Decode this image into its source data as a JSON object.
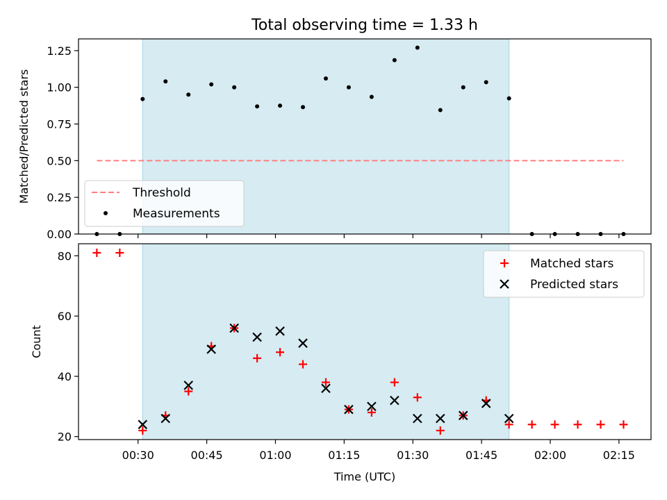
{
  "figure": {
    "title": "Total observing time = 1.33 h"
  },
  "colors": {
    "shade": "#add8e6",
    "threshold": "#ff7f7f",
    "measurement": "#000000",
    "matched": "#ff0000",
    "predicted": "#000000"
  },
  "chart_data": [
    {
      "type": "scatter",
      "panel": "top",
      "title": "Total observing time = 1.33 h",
      "xlabel": "",
      "ylabel": "Matched/Predicted stars",
      "x_unit": "minutes of UTC time",
      "xlim": [
        "00:17",
        "02:22"
      ],
      "ylim": [
        0,
        1.33
      ],
      "yticks": [
        "0.00",
        "0.25",
        "0.50",
        "0.75",
        "1.00",
        "1.25"
      ],
      "xticks": [
        "00:30",
        "00:45",
        "01:00",
        "01:15",
        "01:30",
        "01:45",
        "02:00",
        "02:15"
      ],
      "shaded_interval": [
        "00:31",
        "01:51"
      ],
      "legend_position": "lower-left",
      "series": [
        {
          "name": "Threshold",
          "style": "dashed-line",
          "x": [
            "00:21",
            "02:16"
          ],
          "y": [
            0.5,
            0.5
          ]
        },
        {
          "name": "Measurements",
          "style": "dot",
          "x": [
            "00:21",
            "00:26",
            "00:31",
            "00:36",
            "00:41",
            "00:46",
            "00:51",
            "00:56",
            "01:01",
            "01:06",
            "01:11",
            "01:16",
            "01:21",
            "01:26",
            "01:31",
            "01:36",
            "01:41",
            "01:46",
            "01:51",
            "01:56",
            "02:01",
            "02:06",
            "02:11",
            "02:16"
          ],
          "y": [
            0.0,
            0.0,
            0.92,
            1.04,
            0.95,
            1.02,
            1.0,
            0.87,
            0.875,
            0.865,
            1.06,
            1.0,
            0.935,
            1.185,
            1.27,
            0.845,
            1.0,
            1.035,
            0.925,
            0.0,
            0.0,
            0.0,
            0.0,
            0.0
          ]
        }
      ]
    },
    {
      "type": "scatter",
      "panel": "bottom",
      "title": "",
      "xlabel": "Time (UTC)",
      "ylabel": "Count",
      "x_unit": "minutes of UTC time",
      "xlim": [
        "00:17",
        "02:22"
      ],
      "ylim": [
        19,
        84
      ],
      "yticks": [
        "20",
        "40",
        "60",
        "80"
      ],
      "xticks": [
        "00:30",
        "00:45",
        "01:00",
        "01:15",
        "01:30",
        "01:45",
        "02:00",
        "02:15"
      ],
      "shaded_interval": [
        "00:31",
        "01:51"
      ],
      "legend_position": "upper-right",
      "series": [
        {
          "name": "Matched stars",
          "style": "plus",
          "x": [
            "00:21",
            "00:26",
            "00:31",
            "00:36",
            "00:41",
            "00:46",
            "00:51",
            "00:56",
            "01:01",
            "01:06",
            "01:11",
            "01:16",
            "01:21",
            "01:26",
            "01:31",
            "01:36",
            "01:41",
            "01:46",
            "01:51",
            "01:56",
            "02:01",
            "02:06",
            "02:11",
            "02:16"
          ],
          "y": [
            81,
            81,
            22,
            27,
            35,
            50,
            56,
            46,
            48,
            44,
            38,
            29,
            28,
            38,
            33,
            22,
            27,
            32,
            24,
            24,
            24,
            24,
            24,
            24
          ]
        },
        {
          "name": "Predicted stars",
          "style": "x",
          "x": [
            "00:31",
            "00:36",
            "00:41",
            "00:46",
            "00:51",
            "00:56",
            "01:01",
            "01:06",
            "01:11",
            "01:16",
            "01:21",
            "01:26",
            "01:31",
            "01:36",
            "01:41",
            "01:46",
            "01:51"
          ],
          "y": [
            24,
            26,
            37,
            49,
            56,
            53,
            55,
            51,
            36,
            29,
            30,
            32,
            26,
            26,
            27,
            31,
            26
          ]
        }
      ]
    }
  ]
}
